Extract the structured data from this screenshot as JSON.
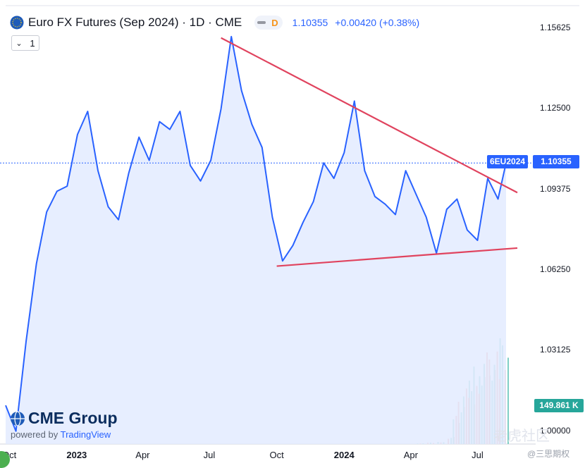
{
  "header": {
    "title": "Euro FX Futures (Sep 2024) · 1D · CME",
    "badge": "D",
    "last_price": "1.10355",
    "change": "+0.00420 (+0.38%)",
    "interval_selector": "1"
  },
  "price_axis": {
    "ticks": [
      "1.15625",
      "1.12500",
      "1.09375",
      "1.06250",
      "1.03125",
      "1.00000"
    ]
  },
  "time_axis": {
    "ticks": [
      {
        "label": "Oct",
        "bold": false
      },
      {
        "label": "2023",
        "bold": true
      },
      {
        "label": "Apr",
        "bold": false
      },
      {
        "label": "Jul",
        "bold": false
      },
      {
        "label": "Oct",
        "bold": false
      },
      {
        "label": "2024",
        "bold": true
      },
      {
        "label": "Apr",
        "bold": false
      },
      {
        "label": "Jul",
        "bold": false
      }
    ]
  },
  "tags": {
    "symbol": "6EU2024",
    "price": "1.10355",
    "volume": "149.861 K"
  },
  "branding": {
    "logo": "CME Group",
    "powered_prefix": "powered by",
    "powered_brand": "TradingView",
    "watermark": "老虎社区",
    "watermark_sub": "@三思期权"
  },
  "colors": {
    "price_line": "#2962ff",
    "area_fill": "#e3ebff",
    "trendline": "#e0435e",
    "volume_up": "#7fcfc6",
    "volume_down": "#f2a19a"
  },
  "chart_data": {
    "type": "area",
    "title": "Euro FX Futures (Sep 2024) · 1D · CME",
    "ylim": [
      0.995,
      1.165
    ],
    "x_range": [
      "2022-09-26",
      "2024-08-09"
    ],
    "series": [
      {
        "name": "6EU2024",
        "x": [
          "2022-09-26",
          "2022-10-10",
          "2022-10-24",
          "2022-11-07",
          "2022-11-21",
          "2022-12-05",
          "2022-12-19",
          "2023-01-02",
          "2023-01-16",
          "2023-01-30",
          "2023-02-13",
          "2023-02-27",
          "2023-03-13",
          "2023-03-27",
          "2023-04-10",
          "2023-04-24",
          "2023-05-08",
          "2023-05-22",
          "2023-06-05",
          "2023-06-19",
          "2023-07-03",
          "2023-07-17",
          "2023-07-31",
          "2023-08-14",
          "2023-08-28",
          "2023-09-11",
          "2023-09-25",
          "2023-10-09",
          "2023-10-23",
          "2023-11-06",
          "2023-11-20",
          "2023-12-04",
          "2023-12-18",
          "2024-01-01",
          "2024-01-15",
          "2024-01-29",
          "2024-02-12",
          "2024-02-26",
          "2024-03-11",
          "2024-03-25",
          "2024-04-08",
          "2024-04-22",
          "2024-05-06",
          "2024-05-20",
          "2024-06-03",
          "2024-06-17",
          "2024-07-01",
          "2024-07-15",
          "2024-07-29",
          "2024-08-09"
        ],
        "values": [
          1.01,
          1.0,
          1.035,
          1.065,
          1.085,
          1.093,
          1.095,
          1.115,
          1.124,
          1.101,
          1.087,
          1.082,
          1.1,
          1.114,
          1.105,
          1.12,
          1.117,
          1.124,
          1.103,
          1.097,
          1.105,
          1.125,
          1.153,
          1.132,
          1.119,
          1.11,
          1.083,
          1.066,
          1.072,
          1.081,
          1.089,
          1.104,
          1.098,
          1.108,
          1.128,
          1.101,
          1.091,
          1.088,
          1.084,
          1.101,
          1.092,
          1.083,
          1.069,
          1.086,
          1.09,
          1.078,
          1.074,
          1.098,
          1.09,
          1.104
        ]
      }
    ],
    "trendlines": [
      {
        "from": [
          "2023-07-17",
          1.1525
        ],
        "to": [
          "2024-08-09",
          1.0925
        ]
      },
      {
        "from": [
          "2023-10-01",
          1.064
        ],
        "to": [
          "2024-08-09",
          1.071
        ]
      }
    ],
    "volume": {
      "x": [
        "2024-04-15",
        "2024-04-29",
        "2024-05-13",
        "2024-05-27",
        "2024-06-03",
        "2024-06-10",
        "2024-06-17",
        "2024-06-24",
        "2024-07-01",
        "2024-07-08",
        "2024-07-15",
        "2024-07-22",
        "2024-07-29",
        "2024-08-05",
        "2024-08-09"
      ],
      "values": [
        1,
        2,
        3,
        10,
        40,
        60,
        90,
        75,
        110,
        95,
        130,
        120,
        150,
        105,
        140
      ]
    }
  }
}
